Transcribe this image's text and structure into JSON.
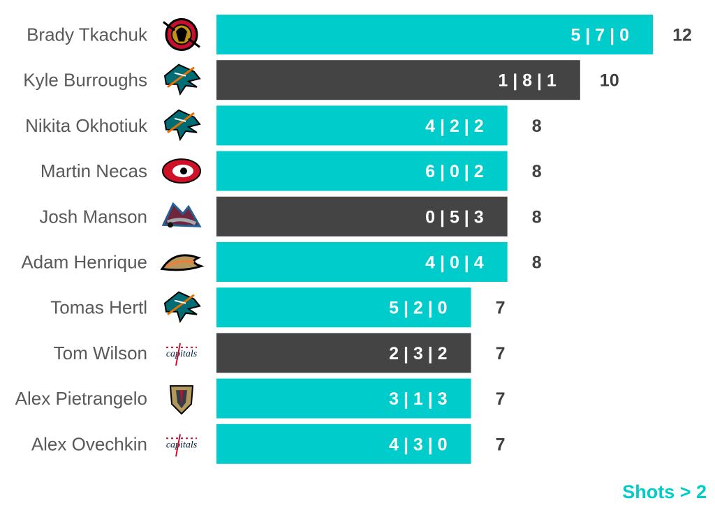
{
  "chart_data": {
    "type": "bar",
    "orientation": "horizontal",
    "categories": [
      "Brady Tkachuk",
      "Kyle Burroughs",
      "Nikita Okhotiuk",
      "Martin Necas",
      "Josh Manson",
      "Adam Henrique",
      "Tomas Hertl",
      "Tom Wilson",
      "Alex Pietrangelo",
      "Alex Ovechkin"
    ],
    "values": [
      12,
      10,
      8,
      8,
      8,
      8,
      7,
      7,
      7,
      7
    ],
    "bar_labels": [
      "5 | 7 | 0",
      "1 | 8 | 1",
      "4 | 2 | 2",
      "6 | 0 | 2",
      "0 | 5 | 3",
      "4 | 0 | 4",
      "5 | 2 | 0",
      "2 | 3 | 2",
      "3 | 1 | 3",
      "4 | 3 | 0"
    ],
    "teams": [
      "ottawa-senators-logo-icon",
      "san-jose-sharks-logo-icon",
      "san-jose-sharks-logo-icon",
      "carolina-hurricanes-logo-icon",
      "colorado-avalanche-logo-icon",
      "anaheim-ducks-logo-icon",
      "san-jose-sharks-logo-icon",
      "washington-capitals-logo-icon",
      "vegas-golden-knights-logo-icon",
      "washington-capitals-logo-icon"
    ],
    "bar_colors": [
      "#00CCCC",
      "#444444",
      "#00CCCC",
      "#00CCCC",
      "#444444",
      "#00CCCC",
      "#00CCCC",
      "#444444",
      "#00CCCC",
      "#00CCCC"
    ],
    "xlim": [
      0,
      12
    ],
    "grid": false,
    "legend": "none",
    "title": "",
    "xlabel": "",
    "ylabel": ""
  },
  "footnote": "Shots > 2",
  "colors": {
    "accent": "#00CCCC",
    "dark": "#444444",
    "name_text": "#595959",
    "total_text": "#404040"
  }
}
